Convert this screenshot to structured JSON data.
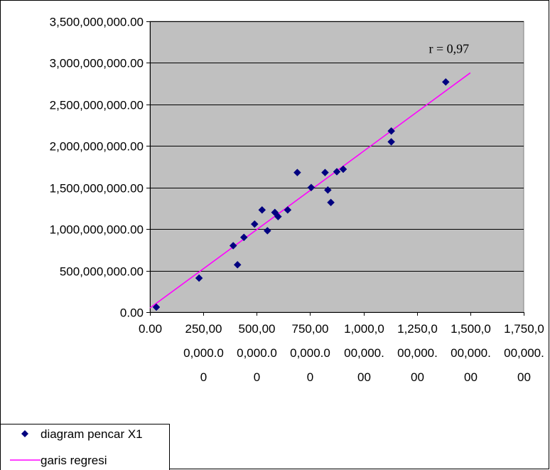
{
  "chart_data": {
    "type": "scatter",
    "title": "",
    "xlabel": "",
    "ylabel": "",
    "xlim": [
      0,
      1750000000
    ],
    "ylim": [
      0,
      3500000000
    ],
    "x_ticks": [
      0,
      250000000,
      500000000,
      750000000,
      1000000000,
      1250000000,
      1500000000,
      1750000000
    ],
    "y_ticks": [
      0,
      500000000,
      1000000000,
      1500000000,
      2000000000,
      2500000000,
      3000000000,
      3500000000
    ],
    "x_tick_labels": [
      [
        "0.00"
      ],
      [
        "250,00",
        "0,000.0",
        "0"
      ],
      [
        "500,00",
        "0,000.0",
        "0"
      ],
      [
        "750,00",
        "0,000.0",
        "0"
      ],
      [
        "1,000,0",
        "00,000.",
        "00"
      ],
      [
        "1,250,0",
        "00,000.",
        "00"
      ],
      [
        "1,500,0",
        "00,000.",
        "00"
      ],
      [
        "1,750,0",
        "00,000.",
        "00"
      ]
    ],
    "y_tick_labels": [
      "0.00",
      "500,000,000.00",
      "1,000,000,000.00",
      "1,500,000,000.00",
      "2,000,000,000.00",
      "2,500,000,000.00",
      "3,000,000,000.00",
      "3,500,000,000.00"
    ],
    "grid": "horizontal",
    "legend_position": "bottom-left",
    "plot_background": "#c0c0c0",
    "series": [
      {
        "name": "diagram pencar X1",
        "type": "scatter",
        "color": "#000080",
        "marker": "diamond",
        "points": [
          [
            30000000,
            60000000
          ],
          [
            230000000,
            410000000
          ],
          [
            390000000,
            800000000
          ],
          [
            410000000,
            570000000
          ],
          [
            440000000,
            900000000
          ],
          [
            490000000,
            1060000000
          ],
          [
            525000000,
            1230000000
          ],
          [
            550000000,
            980000000
          ],
          [
            585000000,
            1200000000
          ],
          [
            600000000,
            1150000000
          ],
          [
            645000000,
            1230000000
          ],
          [
            690000000,
            1680000000
          ],
          [
            755000000,
            1500000000
          ],
          [
            820000000,
            1680000000
          ],
          [
            833000000,
            1470000000
          ],
          [
            847000000,
            1320000000
          ],
          [
            875000000,
            1690000000
          ],
          [
            905000000,
            1720000000
          ],
          [
            1130000000,
            2180000000
          ],
          [
            1130000000,
            2050000000
          ],
          [
            1385000000,
            2770000000
          ]
        ]
      },
      {
        "name": "garis regresi",
        "type": "line",
        "color": "#ff00ff",
        "points": [
          [
            0,
            50000000
          ],
          [
            1500000000,
            2880000000
          ]
        ]
      }
    ],
    "annotations": [
      {
        "text": "r = 0,97",
        "x": 1400000000,
        "y": 3120000000
      }
    ]
  }
}
